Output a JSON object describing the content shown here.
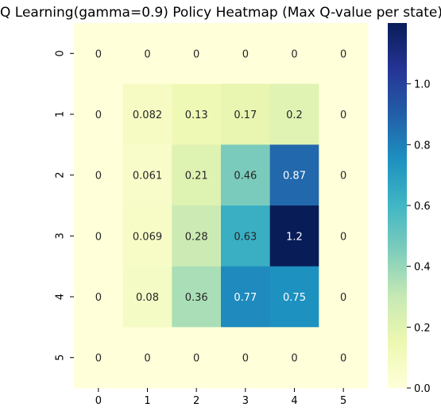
{
  "chart_data": {
    "type": "heatmap",
    "title": "Q Learning(gamma=0.9) Policy Heatmap (Max Q-value per state)",
    "xlabel": "",
    "ylabel": "",
    "x_categories": [
      "0",
      "1",
      "2",
      "3",
      "4",
      "5"
    ],
    "y_categories": [
      "0",
      "1",
      "2",
      "3",
      "4",
      "5"
    ],
    "values": [
      [
        0,
        0,
        0,
        0,
        0,
        0
      ],
      [
        0,
        0.082,
        0.13,
        0.17,
        0.2,
        0
      ],
      [
        0,
        0.061,
        0.21,
        0.46,
        0.87,
        0
      ],
      [
        0,
        0.069,
        0.28,
        0.63,
        1.2,
        0
      ],
      [
        0,
        0.08,
        0.36,
        0.77,
        0.75,
        0
      ],
      [
        0,
        0,
        0,
        0,
        0,
        0
      ]
    ],
    "labels": [
      [
        "0",
        "0",
        "0",
        "0",
        "0",
        "0"
      ],
      [
        "0",
        "0.082",
        "0.13",
        "0.17",
        "0.2",
        "0"
      ],
      [
        "0",
        "0.061",
        "0.21",
        "0.46",
        "0.87",
        "0"
      ],
      [
        "0",
        "0.069",
        "0.28",
        "0.63",
        "1.2",
        "0"
      ],
      [
        "0",
        "0.08",
        "0.36",
        "0.77",
        "0.75",
        "0"
      ],
      [
        "0",
        "0",
        "0",
        "0",
        "0",
        "0"
      ]
    ],
    "colormap": "YlGnBu",
    "vmin": 0,
    "vmax": 1.2,
    "colorbar": {
      "ticks": [
        0.0,
        0.2,
        0.4,
        0.6,
        0.8,
        1.0
      ],
      "tick_labels": [
        "0.0",
        "0.2",
        "0.4",
        "0.6",
        "0.8",
        "1.0"
      ]
    },
    "grid": false,
    "legend": "colorbar-right"
  }
}
